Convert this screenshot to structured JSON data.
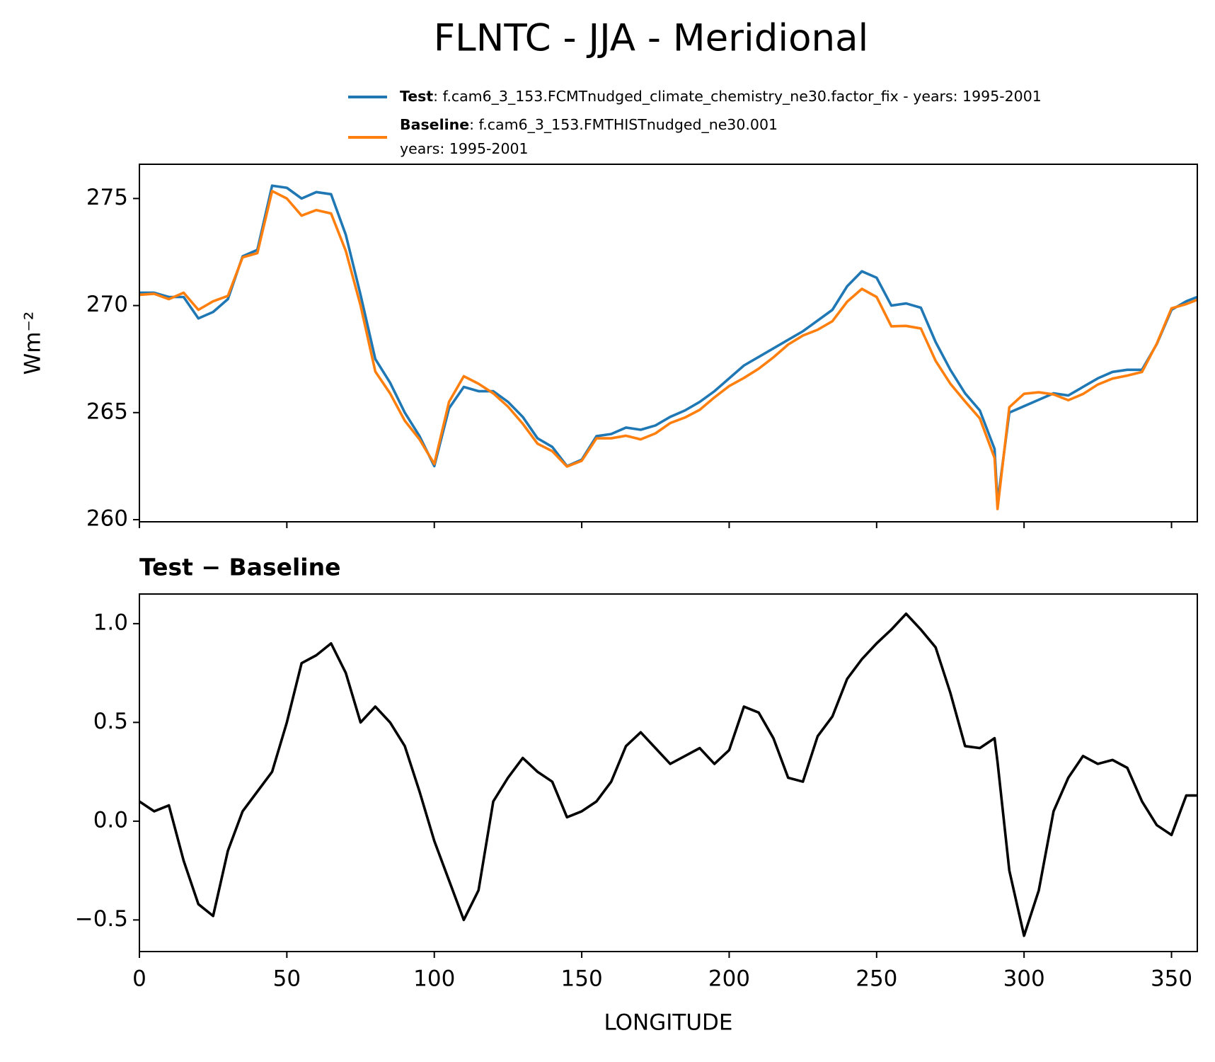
{
  "title": "FLNTC - JJA - Meridional",
  "chart_data": [
    {
      "type": "line",
      "ylabel": "Wm⁻²",
      "x": [
        0,
        5,
        10,
        15,
        20,
        25,
        30,
        35,
        40,
        45,
        50,
        55,
        60,
        65,
        70,
        75,
        80,
        85,
        90,
        95,
        100,
        105,
        110,
        115,
        120,
        125,
        130,
        135,
        140,
        145,
        150,
        155,
        160,
        165,
        170,
        175,
        180,
        185,
        190,
        195,
        200,
        205,
        210,
        215,
        220,
        225,
        230,
        235,
        240,
        245,
        250,
        255,
        260,
        265,
        270,
        275,
        280,
        285,
        290,
        291,
        295,
        300,
        305,
        310,
        315,
        320,
        325,
        330,
        335,
        340,
        345,
        350,
        355,
        358.75
      ],
      "xlim": [
        0,
        358.75
      ],
      "xticks": [
        0,
        50,
        100,
        150,
        200,
        250,
        300,
        350
      ],
      "xtick_labels": false,
      "ylim": [
        259.9,
        276.6
      ],
      "yticks": [
        260,
        265,
        270,
        275
      ],
      "legend": "upper right",
      "series": [
        {
          "name": "Test",
          "legend_text": [
            ": f.cam6_3_153.FCMTnudged_climate_chemistry_ne30.factor_fix - years: 1995-2001"
          ],
          "color": "#1f77b4",
          "values": [
            270.6,
            270.6,
            270.4,
            270.4,
            269.4,
            269.7,
            270.3,
            272.3,
            272.6,
            275.6,
            275.5,
            275.0,
            275.3,
            275.2,
            273.3,
            270.5,
            267.5,
            266.4,
            265.0,
            263.9,
            262.5,
            265.2,
            266.2,
            266.0,
            266.0,
            265.5,
            264.8,
            263.8,
            263.4,
            262.5,
            262.8,
            263.9,
            264.0,
            264.3,
            264.2,
            264.4,
            264.8,
            265.1,
            265.5,
            266.0,
            266.6,
            267.2,
            267.6,
            268.0,
            268.4,
            268.8,
            269.3,
            269.8,
            270.9,
            271.6,
            271.3,
            270.0,
            270.1,
            269.9,
            268.3,
            267.0,
            265.9,
            265.1,
            263.3,
            260.8,
            265.0,
            265.3,
            265.6,
            265.9,
            265.8,
            266.2,
            266.6,
            266.9,
            267.0,
            267.0,
            268.2,
            269.8,
            270.2,
            270.4
          ]
        },
        {
          "name": "Baseline",
          "legend_text": [
            ": f.cam6_3_153.FMTHISTnudged_ne30.001",
            "years: 1995-2001"
          ],
          "color": "#ff7f0e",
          "values": [
            270.5,
            270.55,
            270.3,
            270.6,
            269.8,
            270.2,
            270.45,
            272.25,
            272.45,
            275.35,
            275.0,
            274.2,
            274.46,
            274.3,
            272.55,
            270.0,
            266.92,
            265.9,
            264.62,
            263.75,
            262.6,
            265.5,
            266.7,
            266.35,
            265.9,
            265.28,
            264.48,
            263.55,
            263.2,
            262.48,
            262.75,
            263.8,
            263.8,
            263.92,
            263.75,
            264.03,
            264.51,
            264.77,
            265.13,
            265.71,
            266.24,
            266.62,
            267.05,
            267.58,
            268.18,
            268.6,
            268.87,
            269.27,
            270.18,
            270.78,
            270.4,
            269.03,
            269.05,
            268.93,
            267.42,
            266.35,
            265.52,
            264.73,
            262.88,
            260.5,
            265.25,
            265.88,
            265.95,
            265.85,
            265.58,
            265.87,
            266.31,
            266.59,
            266.73,
            266.9,
            268.22,
            269.87,
            270.07,
            270.27
          ]
        }
      ]
    },
    {
      "type": "line",
      "title": "Test − Baseline",
      "xlabel": "LONGITUDE",
      "x": [
        0,
        5,
        10,
        15,
        20,
        25,
        30,
        35,
        40,
        45,
        50,
        55,
        60,
        65,
        70,
        75,
        80,
        85,
        90,
        95,
        100,
        105,
        110,
        115,
        120,
        125,
        130,
        135,
        140,
        145,
        150,
        155,
        160,
        165,
        170,
        175,
        180,
        185,
        190,
        195,
        200,
        205,
        210,
        215,
        220,
        225,
        230,
        235,
        240,
        245,
        250,
        255,
        260,
        265,
        270,
        275,
        280,
        285,
        290,
        291,
        295,
        300,
        305,
        310,
        315,
        320,
        325,
        330,
        335,
        340,
        345,
        350,
        355,
        358.75
      ],
      "xlim": [
        0,
        358.75
      ],
      "xticks": [
        0,
        50,
        100,
        150,
        200,
        250,
        300,
        350
      ],
      "ylim": [
        -0.66,
        1.15
      ],
      "yticks": [
        {
          "value": -0.5,
          "label": "−0.5"
        },
        {
          "value": 0,
          "label": "0.0"
        },
        0.5,
        {
          "value": 1,
          "label": "1.0"
        }
      ],
      "series": [
        {
          "color": "#000000",
          "values": [
            0.1,
            0.05,
            0.08,
            -0.2,
            -0.42,
            -0.48,
            -0.15,
            0.05,
            0.15,
            0.25,
            0.5,
            0.8,
            0.84,
            0.9,
            0.75,
            0.5,
            0.58,
            0.5,
            0.38,
            0.15,
            -0.1,
            -0.3,
            -0.5,
            -0.35,
            0.1,
            0.22,
            0.32,
            0.25,
            0.2,
            0.02,
            0.05,
            0.1,
            0.2,
            0.38,
            0.45,
            0.37,
            0.29,
            0.33,
            0.37,
            0.29,
            0.36,
            0.58,
            0.55,
            0.42,
            0.22,
            0.2,
            0.43,
            0.53,
            0.72,
            0.82,
            0.9,
            0.97,
            1.05,
            0.97,
            0.88,
            0.65,
            0.38,
            0.37,
            0.42,
            0.3,
            -0.25,
            -0.58,
            -0.35,
            0.05,
            0.22,
            0.33,
            0.29,
            0.31,
            0.27,
            0.1,
            -0.02,
            -0.07,
            0.13,
            0.13
          ]
        }
      ]
    }
  ]
}
